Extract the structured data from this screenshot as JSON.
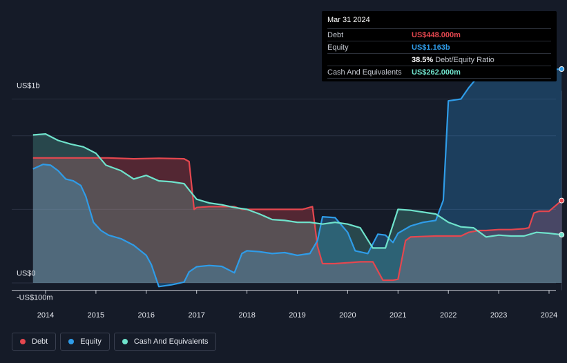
{
  "tooltip": {
    "date": "Mar 31 2024",
    "rows": [
      {
        "name": "Debt",
        "value": "US$448.000m",
        "color": "#e5474f"
      },
      {
        "name": "Equity",
        "value": "US$1.163b",
        "color": "#2f9ce8"
      },
      {
        "name": "",
        "value": "38.5%",
        "extra": "Debt/Equity Ratio",
        "color": "#ffffff"
      },
      {
        "name": "Cash And Equivalents",
        "value": "US$262.000m",
        "color": "#6fe3cc"
      }
    ]
  },
  "legend": [
    {
      "label": "Debt",
      "color": "#e5474f"
    },
    {
      "label": "Equity",
      "color": "#2f9ce8"
    },
    {
      "label": "Cash And Equivalents",
      "color": "#6fe3cc"
    }
  ],
  "chart_data": {
    "type": "area",
    "y_tick_labels": [
      "US$1b",
      "US$0",
      "-US$100m"
    ],
    "x_tick_labels": [
      "2014",
      "2015",
      "2016",
      "2017",
      "2018",
      "2019",
      "2020",
      "2021",
      "2022",
      "2023",
      "2024"
    ],
    "ylim": [
      -100,
      1300
    ],
    "xlim": [
      2013.35,
      2024.25
    ],
    "grid": true,
    "legend_position": "bottom-left",
    "series": [
      {
        "name": "Debt",
        "color": "#e5474f",
        "points": [
          [
            2013.75,
            680
          ],
          [
            2014.5,
            680
          ],
          [
            2015.25,
            680
          ],
          [
            2015.75,
            675
          ],
          [
            2016.25,
            678
          ],
          [
            2016.75,
            675
          ],
          [
            2016.85,
            660
          ],
          [
            2016.95,
            400
          ],
          [
            2017.0,
            410
          ],
          [
            2017.25,
            415
          ],
          [
            2017.75,
            415
          ],
          [
            2017.9,
            400
          ],
          [
            2018.25,
            400
          ],
          [
            2018.75,
            400
          ],
          [
            2019.1,
            400
          ],
          [
            2019.3,
            415
          ],
          [
            2019.4,
            200
          ],
          [
            2019.5,
            105
          ],
          [
            2019.75,
            105
          ],
          [
            2020.0,
            110
          ],
          [
            2020.25,
            115
          ],
          [
            2020.5,
            115
          ],
          [
            2020.7,
            15
          ],
          [
            2020.9,
            15
          ],
          [
            2021.0,
            20
          ],
          [
            2021.15,
            230
          ],
          [
            2021.25,
            250
          ],
          [
            2021.75,
            255
          ],
          [
            2022.0,
            255
          ],
          [
            2022.25,
            255
          ],
          [
            2022.4,
            275
          ],
          [
            2022.6,
            285
          ],
          [
            2022.75,
            285
          ],
          [
            2023.0,
            290
          ],
          [
            2023.25,
            290
          ],
          [
            2023.5,
            295
          ],
          [
            2023.6,
            300
          ],
          [
            2023.7,
            380
          ],
          [
            2023.8,
            390
          ],
          [
            2024.0,
            390
          ],
          [
            2024.25,
            448
          ]
        ]
      },
      {
        "name": "Equity",
        "color": "#2f9ce8",
        "points": [
          [
            2013.75,
            620
          ],
          [
            2013.95,
            645
          ],
          [
            2014.1,
            640
          ],
          [
            2014.25,
            610
          ],
          [
            2014.4,
            565
          ],
          [
            2014.55,
            555
          ],
          [
            2014.7,
            530
          ],
          [
            2014.8,
            470
          ],
          [
            2014.95,
            330
          ],
          [
            2015.1,
            285
          ],
          [
            2015.25,
            260
          ],
          [
            2015.5,
            240
          ],
          [
            2015.75,
            205
          ],
          [
            2016.0,
            150
          ],
          [
            2016.1,
            100
          ],
          [
            2016.25,
            -20
          ],
          [
            2016.5,
            -10
          ],
          [
            2016.75,
            5
          ],
          [
            2016.85,
            60
          ],
          [
            2017.0,
            88
          ],
          [
            2017.25,
            95
          ],
          [
            2017.5,
            90
          ],
          [
            2017.75,
            55
          ],
          [
            2017.9,
            160
          ],
          [
            2018.0,
            175
          ],
          [
            2018.25,
            170
          ],
          [
            2018.5,
            160
          ],
          [
            2018.75,
            165
          ],
          [
            2019.0,
            150
          ],
          [
            2019.25,
            160
          ],
          [
            2019.4,
            230
          ],
          [
            2019.5,
            360
          ],
          [
            2019.75,
            355
          ],
          [
            2020.0,
            275
          ],
          [
            2020.15,
            175
          ],
          [
            2020.4,
            160
          ],
          [
            2020.6,
            265
          ],
          [
            2020.75,
            260
          ],
          [
            2020.9,
            220
          ],
          [
            2021.0,
            270
          ],
          [
            2021.25,
            310
          ],
          [
            2021.5,
            330
          ],
          [
            2021.75,
            340
          ],
          [
            2021.9,
            450
          ],
          [
            2022.0,
            990
          ],
          [
            2022.25,
            1000
          ],
          [
            2022.4,
            1060
          ],
          [
            2022.6,
            1125
          ],
          [
            2022.75,
            1130
          ],
          [
            2022.9,
            1160
          ],
          [
            2023.0,
            1250
          ],
          [
            2023.25,
            1270
          ],
          [
            2023.5,
            1190
          ],
          [
            2023.75,
            1180
          ],
          [
            2024.0,
            1160
          ],
          [
            2024.25,
            1163
          ]
        ]
      },
      {
        "name": "Cash And Equivalents",
        "color": "#6fe3cc",
        "points": [
          [
            2013.75,
            805
          ],
          [
            2014.0,
            810
          ],
          [
            2014.25,
            775
          ],
          [
            2014.5,
            755
          ],
          [
            2014.75,
            740
          ],
          [
            2015.0,
            705
          ],
          [
            2015.2,
            640
          ],
          [
            2015.5,
            610
          ],
          [
            2015.75,
            565
          ],
          [
            2016.0,
            585
          ],
          [
            2016.25,
            555
          ],
          [
            2016.5,
            550
          ],
          [
            2016.75,
            540
          ],
          [
            2017.0,
            455
          ],
          [
            2017.25,
            435
          ],
          [
            2017.5,
            425
          ],
          [
            2017.75,
            410
          ],
          [
            2018.0,
            400
          ],
          [
            2018.25,
            375
          ],
          [
            2018.5,
            345
          ],
          [
            2018.75,
            340
          ],
          [
            2019.0,
            330
          ],
          [
            2019.25,
            330
          ],
          [
            2019.5,
            320
          ],
          [
            2019.75,
            330
          ],
          [
            2020.0,
            320
          ],
          [
            2020.25,
            300
          ],
          [
            2020.5,
            190
          ],
          [
            2020.75,
            190
          ],
          [
            2021.0,
            400
          ],
          [
            2021.25,
            395
          ],
          [
            2021.5,
            385
          ],
          [
            2021.75,
            375
          ],
          [
            2022.0,
            330
          ],
          [
            2022.25,
            305
          ],
          [
            2022.5,
            300
          ],
          [
            2022.75,
            250
          ],
          [
            2023.0,
            260
          ],
          [
            2023.25,
            255
          ],
          [
            2023.5,
            255
          ],
          [
            2023.75,
            275
          ],
          [
            2024.0,
            270
          ],
          [
            2024.25,
            262
          ]
        ]
      }
    ]
  }
}
